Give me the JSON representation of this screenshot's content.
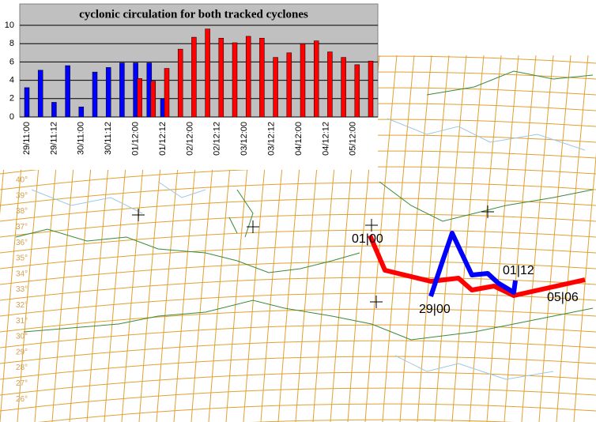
{
  "chart_data": {
    "type": "bar",
    "title": "cyclonic circulation for both tracked cyclones",
    "categories": [
      "29/11:00",
      null,
      "29/11:12",
      null,
      "30/11:00",
      null,
      "30/11:12",
      null,
      "01/12:00",
      null,
      "01/12:12",
      null,
      "02/12:00",
      null,
      "02/12:12",
      null,
      "03/12:00",
      null,
      "03/12:12",
      null,
      "04/12:00",
      null,
      "04/12:12",
      null,
      "05/12:00",
      null
    ],
    "series": [
      {
        "color": "#0000ff",
        "values": [
          3.2,
          5.1,
          1.6,
          5.6,
          1.1,
          4.9,
          5.4,
          5.9,
          5.9,
          5.9,
          2.0,
          null,
          null,
          null,
          null,
          null,
          null,
          null,
          null,
          null,
          null,
          null,
          null,
          null,
          null,
          null
        ]
      },
      {
        "color": "#ff0000",
        "values": [
          null,
          null,
          null,
          null,
          null,
          null,
          null,
          null,
          4.2,
          3.9,
          5.3,
          7.4,
          8.7,
          9.6,
          8.6,
          8.1,
          8.8,
          8.6,
          6.5,
          7.0,
          8.0,
          8.3,
          7.1,
          6.5,
          5.7,
          6.1
        ]
      }
    ],
    "ylim": [
      0,
      10
    ],
    "yticks": [
      0,
      2,
      4,
      6,
      8,
      10
    ],
    "grid": true
  },
  "map": {
    "track_labels": [
      "01|00",
      "01|12",
      "29|00",
      "05|06"
    ],
    "lat_labels": [
      "40°",
      "39°",
      "38°",
      "37°",
      "36°",
      "35°",
      "34°",
      "33°",
      "32°",
      "31°",
      "30°",
      "29°",
      "28°",
      "27°",
      "26°"
    ]
  }
}
